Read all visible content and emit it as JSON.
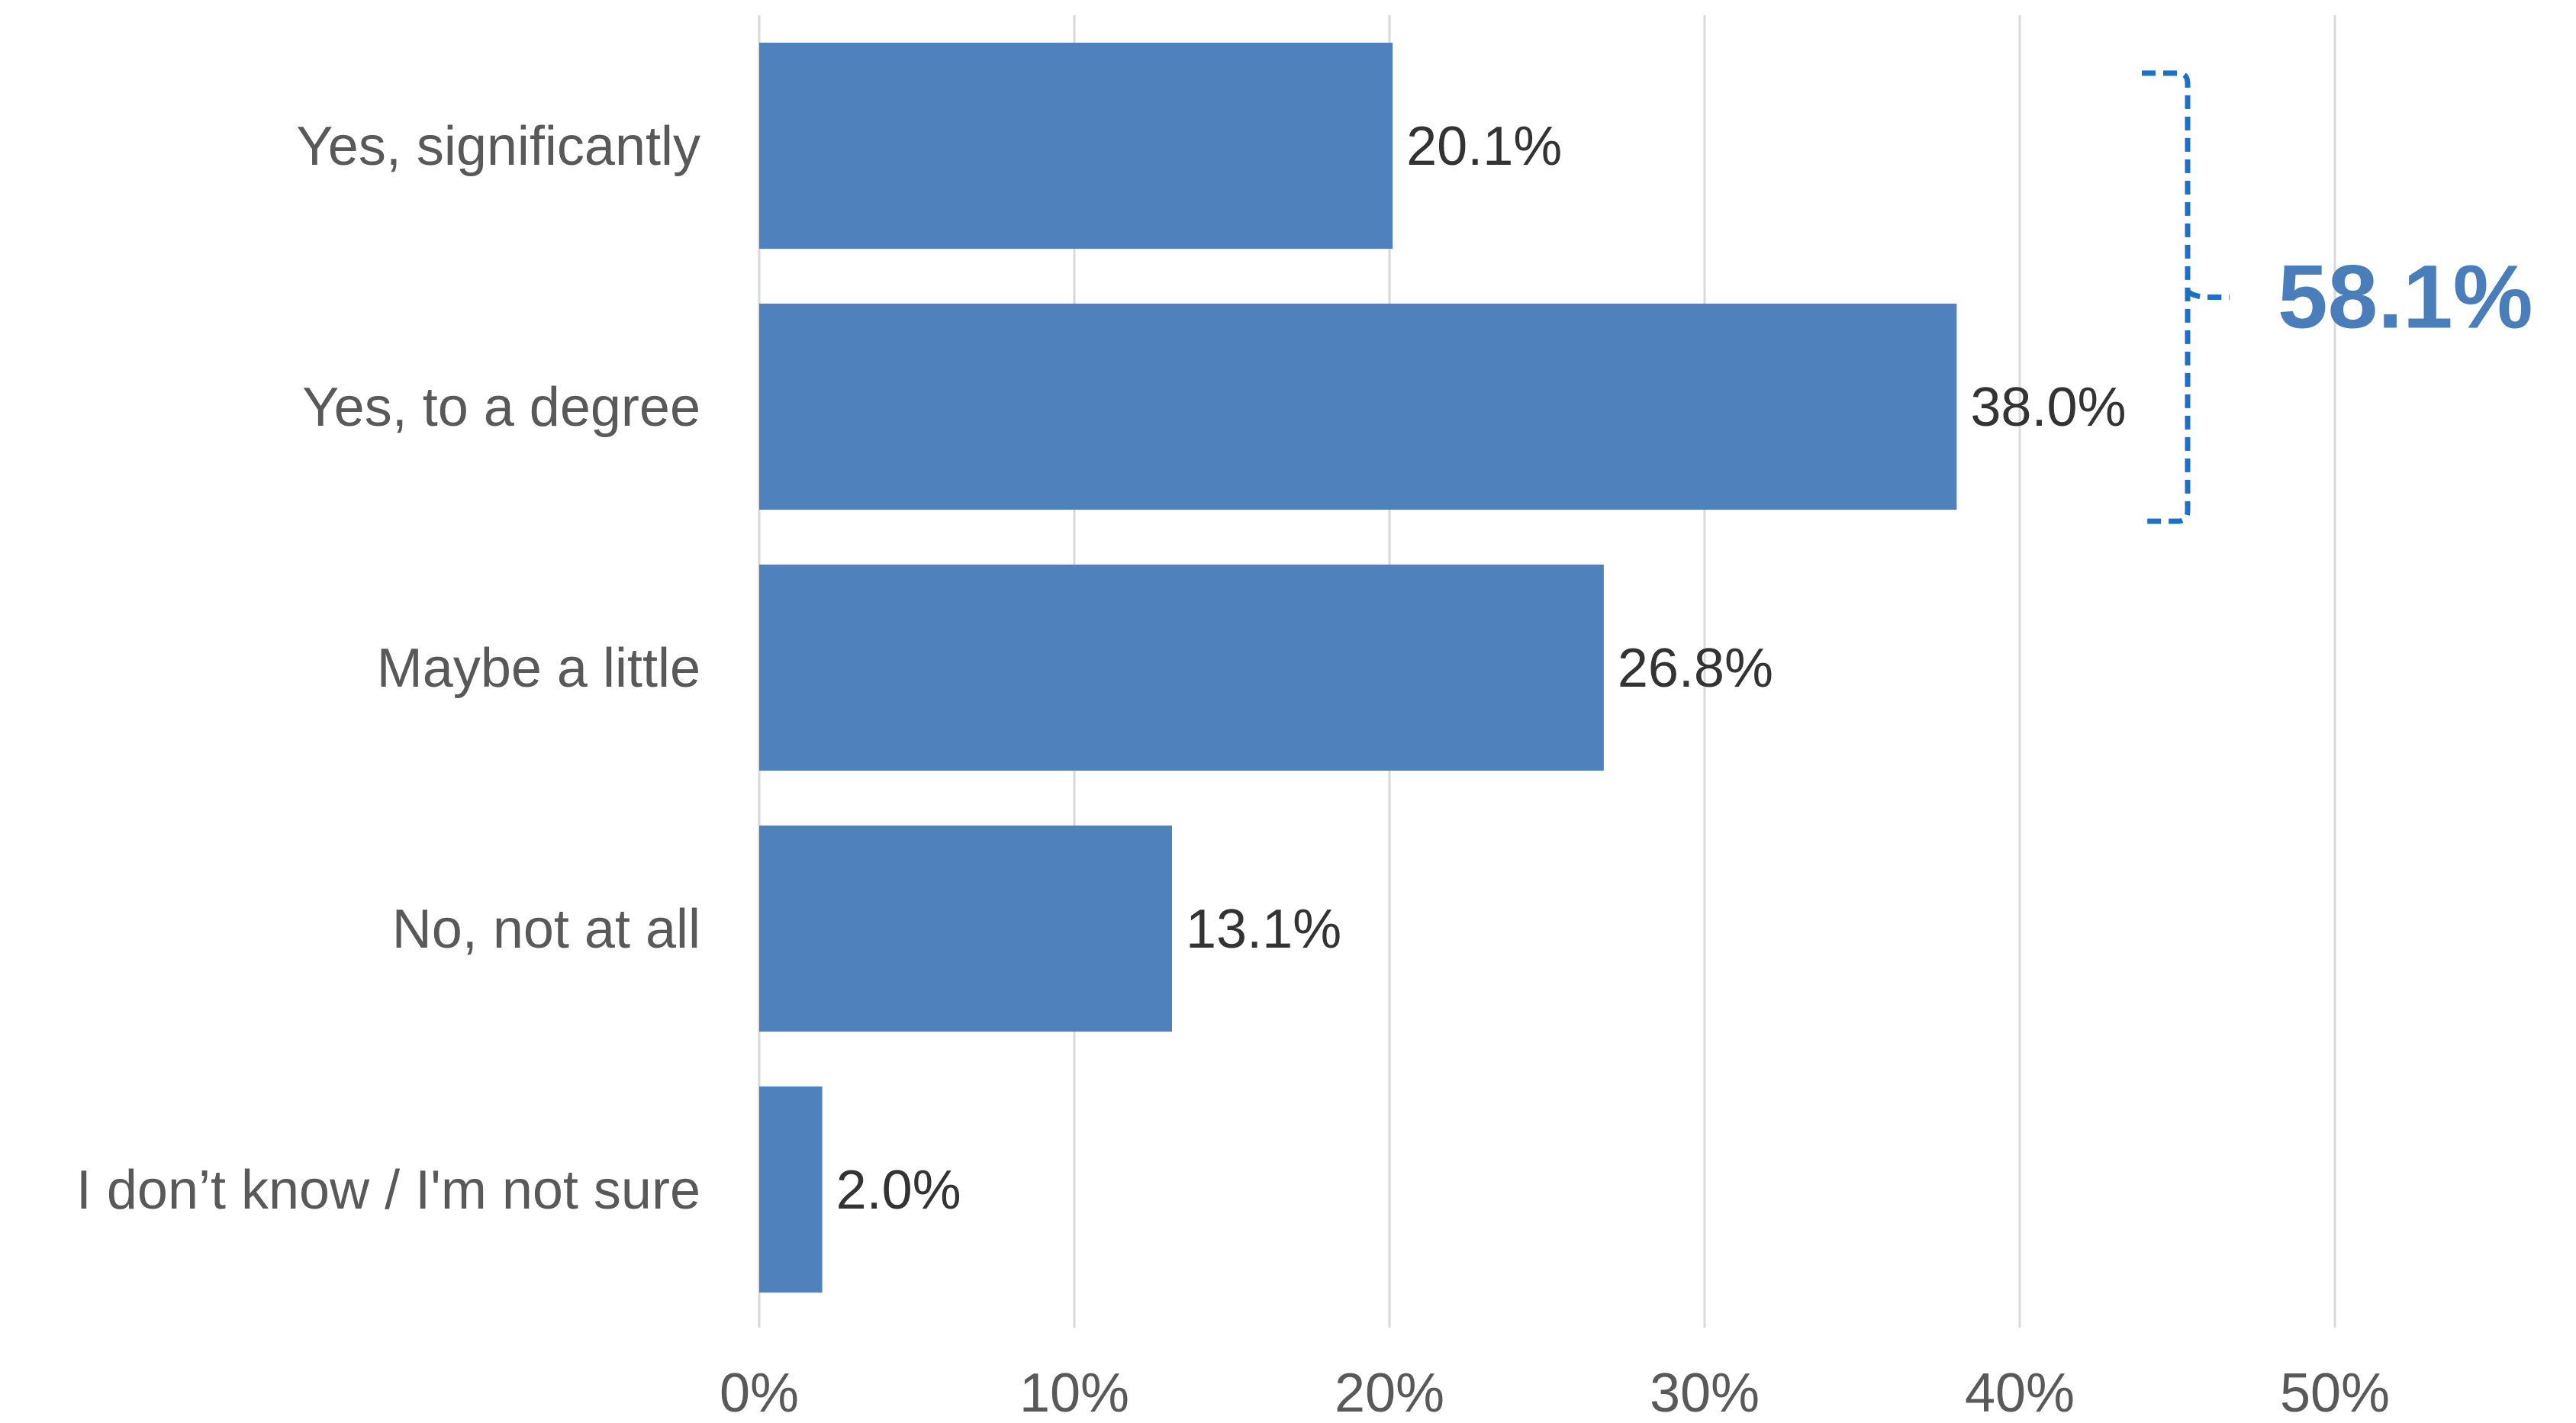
{
  "chart_data": {
    "type": "bar",
    "orientation": "horizontal",
    "categories": [
      "Yes, significantly",
      "Yes, to a degree",
      "Maybe a little",
      "No, not at all",
      "I don’t know / I'm not sure"
    ],
    "values": [
      20.1,
      38.0,
      26.8,
      13.1,
      2.0
    ],
    "value_labels": [
      "20.1%",
      "38.0%",
      "26.8%",
      "13.1%",
      "2.0%"
    ],
    "xlim": [
      0,
      50
    ],
    "x_ticks": [
      0,
      10,
      20,
      30,
      40,
      50
    ],
    "x_tick_labels": [
      "0%",
      "10%",
      "20%",
      "30%",
      "40%",
      "50%"
    ],
    "grid": "vertical",
    "bar_color": "#4f81bd",
    "annotation": {
      "text": "58.1%",
      "groups_categories": [
        "Yes, significantly",
        "Yes, to a degree"
      ],
      "color": "#4a7ebb",
      "bracket_color": "#1f6fc5"
    }
  }
}
